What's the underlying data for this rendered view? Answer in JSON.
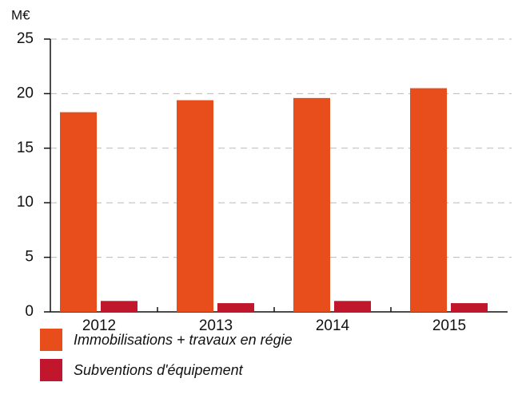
{
  "chart_data": {
    "type": "bar",
    "y_label": "M€",
    "categories": [
      "2012",
      "2013",
      "2014",
      "2015"
    ],
    "series": [
      {
        "name": "Immobilisations + travaux en régie",
        "color": "#e84e1b",
        "values": [
          18.3,
          19.4,
          19.6,
          20.5
        ]
      },
      {
        "name": "Subventions d'équipement",
        "color": "#c0172c",
        "values": [
          1.0,
          0.8,
          1.0,
          0.8
        ]
      }
    ],
    "ylim": [
      0,
      25
    ],
    "yticks": [
      0,
      5,
      10,
      15,
      20,
      25
    ],
    "grid": true,
    "legend": "bottom"
  }
}
